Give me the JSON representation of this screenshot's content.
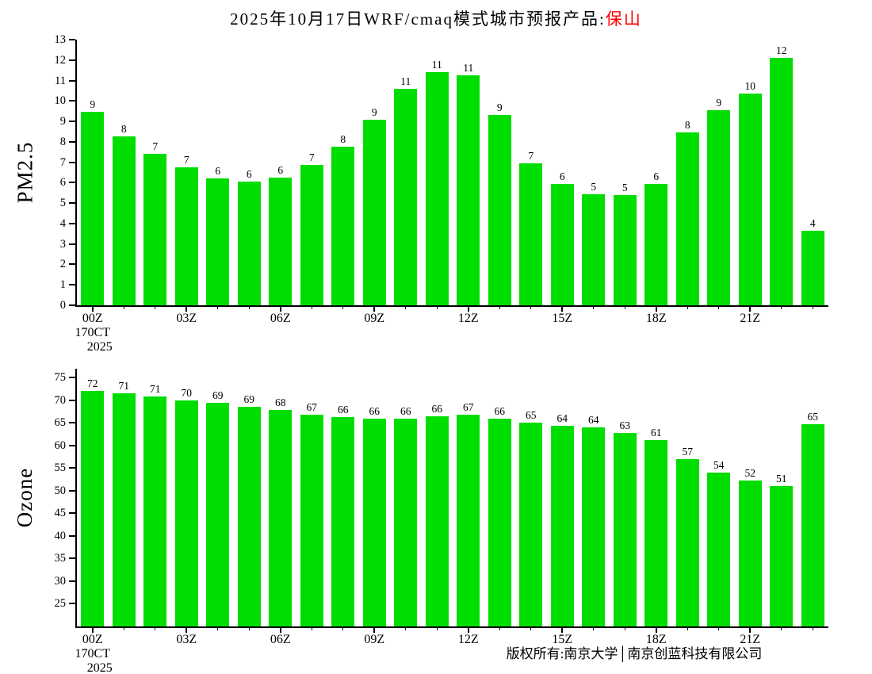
{
  "title": {
    "main": "2025年10月17日WRF/cmaq模式城市预报产品:",
    "city": "保山",
    "city_color": "#ff0000"
  },
  "footer": {
    "copyright": "版权所有:南京大学│南京创蓝科技有限公司"
  },
  "x_axis": {
    "tick_labels": [
      "00Z",
      "03Z",
      "06Z",
      "09Z",
      "12Z",
      "15Z",
      "18Z",
      "21Z"
    ],
    "tick_positions": [
      0,
      3,
      6,
      9,
      12,
      15,
      18,
      21
    ],
    "start_date_line1": "170CT",
    "start_date_line2": "2025"
  },
  "chart_data": [
    {
      "type": "bar",
      "title": "",
      "xlabel": "",
      "ylabel": "PM2.5",
      "ylim": [
        0,
        13
      ],
      "yticks": [
        0,
        1,
        2,
        3,
        4,
        5,
        6,
        7,
        8,
        9,
        10,
        11,
        12,
        13
      ],
      "grid": false,
      "legend": "none",
      "categories": [
        "00Z",
        "01Z",
        "02Z",
        "03Z",
        "04Z",
        "05Z",
        "06Z",
        "07Z",
        "08Z",
        "09Z",
        "10Z",
        "11Z",
        "12Z",
        "13Z",
        "14Z",
        "15Z",
        "16Z",
        "17Z",
        "18Z",
        "19Z",
        "20Z",
        "21Z",
        "22Z",
        "23Z"
      ],
      "values": [
        9.45,
        8.25,
        7.4,
        6.75,
        6.2,
        6.05,
        6.25,
        6.85,
        7.75,
        9.1,
        10.6,
        11.4,
        11.25,
        9.3,
        6.95,
        5.95,
        5.45,
        5.4,
        5.95,
        8.45,
        9.55,
        10.35,
        12.1,
        3.65
      ],
      "bar_labels": [
        9,
        8,
        7,
        7,
        6,
        6,
        6,
        7,
        8,
        9,
        11,
        11,
        11,
        9,
        7,
        6,
        5,
        5,
        6,
        8,
        9,
        10,
        12,
        4
      ],
      "bar_color": "#00dd00"
    },
    {
      "type": "bar",
      "title": "",
      "xlabel": "",
      "ylabel": "Ozone",
      "ylim": [
        20,
        77
      ],
      "yticks": [
        25,
        30,
        35,
        40,
        45,
        50,
        55,
        60,
        65,
        70,
        75
      ],
      "grid": false,
      "legend": "none",
      "categories": [
        "00Z",
        "01Z",
        "02Z",
        "03Z",
        "04Z",
        "05Z",
        "06Z",
        "07Z",
        "08Z",
        "09Z",
        "10Z",
        "11Z",
        "12Z",
        "13Z",
        "14Z",
        "15Z",
        "16Z",
        "17Z",
        "18Z",
        "19Z",
        "20Z",
        "21Z",
        "22Z",
        "23Z"
      ],
      "values": [
        72.1,
        71.5,
        70.8,
        70,
        69.4,
        68.6,
        67.8,
        66.9,
        66.3,
        66,
        66,
        66.4,
        66.8,
        66,
        65,
        64.4,
        64,
        62.8,
        61.3,
        57,
        54,
        52.3,
        51,
        64.8
      ],
      "bar_labels": [
        72,
        71,
        71,
        70,
        69,
        69,
        68,
        67,
        66,
        66,
        66,
        66,
        67,
        66,
        65,
        64,
        64,
        63,
        61,
        57,
        54,
        52,
        51,
        65
      ],
      "bar_color": "#00dd00"
    }
  ]
}
